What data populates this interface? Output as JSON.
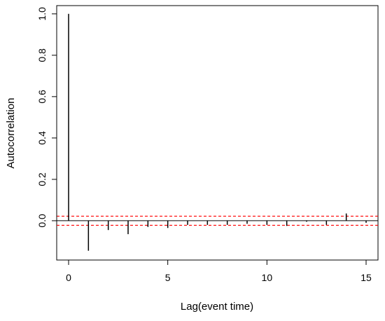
{
  "chart_data": {
    "type": "bar",
    "title": "",
    "xlabel": "Lag(event time)",
    "ylabel": "Autocorrelation",
    "x": [
      0,
      1,
      2,
      3,
      4,
      5,
      6,
      7,
      8,
      9,
      10,
      11,
      12,
      13,
      14,
      15
    ],
    "values": [
      1.0,
      -0.145,
      -0.045,
      -0.065,
      -0.03,
      -0.035,
      -0.02,
      -0.02,
      -0.02,
      -0.015,
      -0.02,
      -0.025,
      -0.005,
      -0.02,
      0.035,
      -0.01
    ],
    "xlim": [
      -0.6,
      15.6
    ],
    "ylim": [
      -0.19,
      1.04
    ],
    "xticks": [
      "0",
      "5",
      "10",
      "15"
    ],
    "yticks": [
      "0.0",
      "0.2",
      "0.4",
      "0.6",
      "0.8",
      "1.0"
    ],
    "confidence_band": {
      "upper": 0.022,
      "lower": -0.022,
      "color": "#ff0000",
      "style": "dashed"
    },
    "zero_line": true,
    "grid": false,
    "bar_color": "#000000"
  }
}
